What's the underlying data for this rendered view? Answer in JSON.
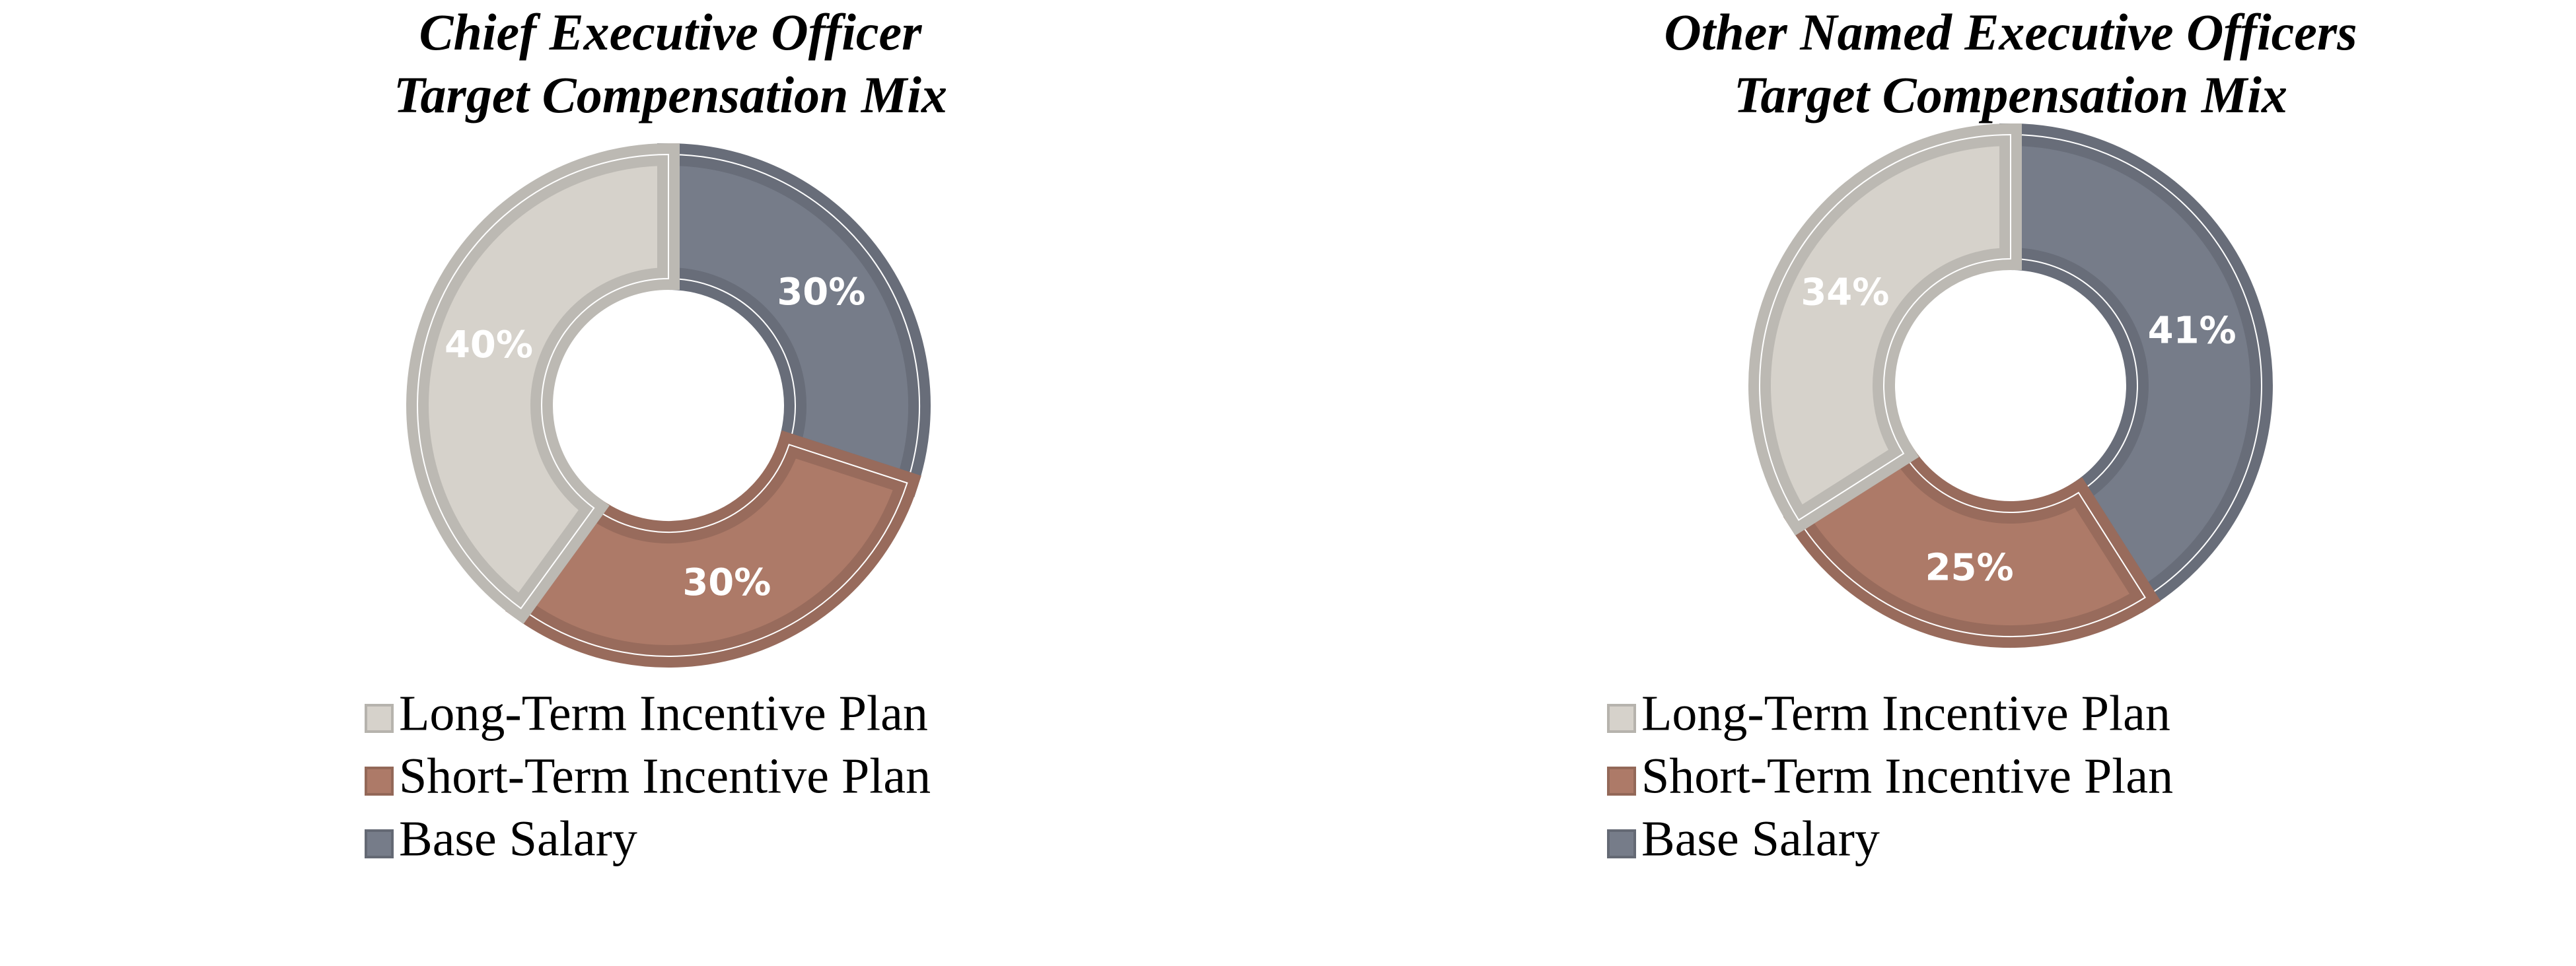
{
  "chart_data": [
    {
      "type": "donut",
      "title": [
        "Chief Executive Officer",
        "Target Compensation Mix"
      ],
      "categories": [
        "Long-Term Incentive Plan",
        "Short-Term Incentive Plan",
        "Base Salary"
      ],
      "values": [
        40,
        30,
        30
      ],
      "value_labels": [
        "40%",
        "30%",
        "30%"
      ],
      "colors": [
        "#d6d2cb",
        "#ad7a68",
        "#767c89"
      ]
    },
    {
      "type": "donut",
      "title": [
        "Other Named Executive Officers",
        "Target Compensation Mix"
      ],
      "categories": [
        "Long-Term Incentive Plan",
        "Short-Term Incentive Plan",
        "Base Salary"
      ],
      "values": [
        34,
        25,
        41
      ],
      "value_labels": [
        "34%",
        "25%",
        "41%"
      ],
      "colors": [
        "#d6d2cb",
        "#ad7a68",
        "#767c89"
      ]
    }
  ]
}
